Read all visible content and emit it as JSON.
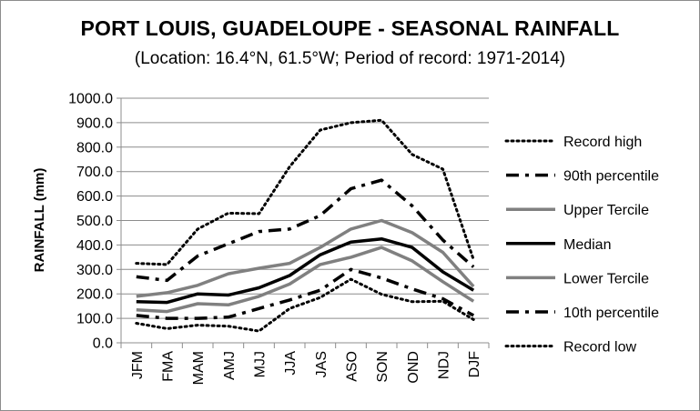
{
  "chart_data": {
    "type": "line",
    "title": "PORT LOUIS, GUADELOUPE - SEASONAL RAINFALL",
    "subtitle": "(Location: 16.4°N, 61.5°W; Period of record: 1971-2014)",
    "xlabel": "",
    "ylabel": "RAINFALL (mm)",
    "ylim": [
      0,
      1000
    ],
    "yticks": [
      "0.0",
      "100.0",
      "200.0",
      "300.0",
      "400.0",
      "500.0",
      "600.0",
      "700.0",
      "800.0",
      "900.0",
      "1000.0"
    ],
    "categories": [
      "JFM",
      "FMA",
      "MAM",
      "AMJ",
      "MJJ",
      "JJA",
      "JAS",
      "ASO",
      "SON",
      "OND",
      "NDJ",
      "DJF"
    ],
    "grid": true,
    "legend_position": "right",
    "series": [
      {
        "name": "Record high",
        "style": "dotted",
        "color": "#000000",
        "values": [
          325,
          320,
          465,
          530,
          528,
          720,
          870,
          900,
          910,
          770,
          710,
          340
        ]
      },
      {
        "name": "90th percentile",
        "style": "dashdot",
        "color": "#000000",
        "values": [
          270,
          255,
          355,
          405,
          455,
          465,
          520,
          630,
          665,
          560,
          420,
          310
        ]
      },
      {
        "name": "Upper Tercile",
        "style": "solid",
        "color": "#808080",
        "values": [
          190,
          205,
          235,
          282,
          305,
          325,
          390,
          465,
          500,
          450,
          370,
          230
        ]
      },
      {
        "name": "Median",
        "style": "solid",
        "color": "#000000",
        "values": [
          168,
          165,
          200,
          195,
          225,
          275,
          360,
          412,
          425,
          390,
          290,
          215
        ]
      },
      {
        "name": "Lower Tercile",
        "style": "solid",
        "color": "#808080",
        "values": [
          135,
          128,
          160,
          155,
          190,
          240,
          320,
          350,
          390,
          335,
          250,
          170
        ]
      },
      {
        "name": "10th percentile",
        "style": "dashdot",
        "color": "#000000",
        "values": [
          112,
          100,
          100,
          105,
          140,
          175,
          215,
          300,
          265,
          220,
          180,
          112
        ]
      },
      {
        "name": "Record low",
        "style": "dotted",
        "color": "#000000",
        "values": [
          80,
          58,
          72,
          68,
          48,
          140,
          185,
          260,
          198,
          168,
          170,
          95
        ]
      }
    ]
  }
}
